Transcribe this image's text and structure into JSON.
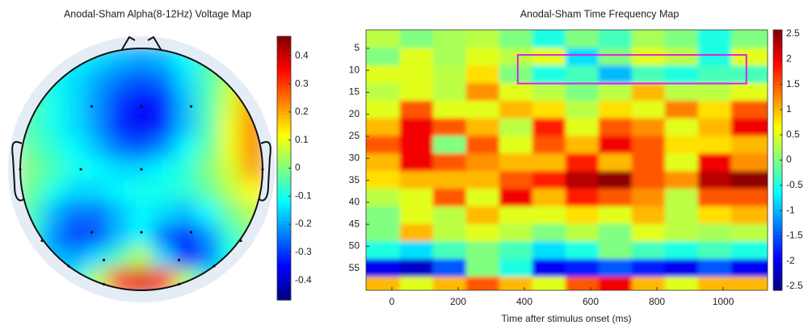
{
  "chart_data": [
    {
      "type": "topomap",
      "title": "Anodal-Sham Alpha(8-12Hz) Voltage Map",
      "x": [
        -0.91,
        -0.73,
        -0.55,
        -0.36,
        -0.18,
        0,
        0.18,
        0.36,
        0.55,
        0.73,
        0.91
      ],
      "y": [
        0.91,
        0.73,
        0.55,
        0.36,
        0.18,
        0,
        -0.18,
        -0.36,
        -0.55,
        -0.73,
        -0.91
      ],
      "values": [
        [
          -0.05,
          -0.1,
          -0.12,
          -0.15,
          -0.18,
          -0.2,
          -0.18,
          -0.12,
          -0.05,
          0.02,
          0.1
        ],
        [
          -0.05,
          -0.1,
          -0.15,
          -0.2,
          -0.25,
          -0.28,
          -0.25,
          -0.15,
          -0.05,
          0.05,
          0.15
        ],
        [
          -0.05,
          -0.1,
          -0.15,
          -0.22,
          -0.3,
          -0.35,
          -0.32,
          -0.18,
          -0.05,
          0.08,
          0.2
        ],
        [
          -0.05,
          -0.1,
          -0.15,
          -0.22,
          -0.32,
          -0.36,
          -0.32,
          -0.18,
          -0.05,
          0.1,
          0.22
        ],
        [
          -0.03,
          -0.08,
          -0.12,
          -0.18,
          -0.25,
          -0.28,
          -0.22,
          -0.12,
          -0.03,
          0.1,
          0.22
        ],
        [
          0,
          -0.05,
          -0.1,
          -0.12,
          -0.15,
          -0.15,
          -0.12,
          -0.08,
          0,
          0.08,
          0.2
        ],
        [
          -0.02,
          -0.1,
          -0.15,
          -0.15,
          -0.12,
          -0.1,
          -0.1,
          -0.08,
          -0.03,
          0.05,
          0.12
        ],
        [
          -0.05,
          -0.18,
          -0.25,
          -0.25,
          -0.18,
          -0.12,
          -0.15,
          -0.18,
          -0.12,
          -0.02,
          0.05
        ],
        [
          -0.08,
          -0.22,
          -0.3,
          -0.28,
          -0.18,
          -0.12,
          -0.25,
          -0.32,
          -0.22,
          -0.08,
          0
        ],
        [
          -0.1,
          -0.18,
          -0.2,
          -0.15,
          -0.05,
          0.05,
          -0.15,
          -0.35,
          -0.25,
          -0.1,
          -0.05
        ],
        [
          -0.1,
          -0.12,
          -0.1,
          0.05,
          0.3,
          0.38,
          0.3,
          0.05,
          -0.1,
          -0.1,
          -0.1
        ]
      ],
      "electrodes": {
        "x": [
          -0.41,
          0,
          0.41,
          -1,
          -0.5,
          0,
          1,
          -0.41,
          0,
          0.41,
          -0.82,
          0.82,
          -0.6,
          -0.31,
          0.31,
          0.6,
          -0.31,
          0.31
        ],
        "y": [
          0.52,
          0.52,
          0.52,
          0,
          0,
          0,
          0,
          -0.52,
          -0.52,
          -0.52,
          -0.59,
          -0.59,
          -0.8,
          -0.75,
          -0.75,
          -0.8,
          -0.95,
          -0.95
        ]
      },
      "clim": [
        -0.47,
        0.47
      ],
      "cticks": [
        0.4,
        0.3,
        0.2,
        0.1,
        0,
        -0.1,
        -0.2,
        -0.3,
        -0.4
      ],
      "colormap": "jet"
    },
    {
      "type": "heatmap",
      "title": "Anodal-Sham Time Frequency Map",
      "xlabel": "Time after stimulus onset (ms)",
      "x": [
        -25,
        75,
        175,
        275,
        375,
        475,
        575,
        675,
        775,
        875,
        975,
        1075
      ],
      "y": [
        3,
        7,
        11,
        15,
        19,
        23,
        27,
        31,
        35,
        39,
        43,
        47,
        51,
        55,
        59
      ],
      "values": [
        [
          0.3,
          0,
          0.2,
          0.3,
          0,
          -0.5,
          0,
          -0.3,
          0.2,
          0,
          -0.5,
          0
        ],
        [
          0,
          0.5,
          0.2,
          0.5,
          0.3,
          0.5,
          -0.8,
          0,
          0.5,
          0.3,
          -0.5,
          0.5
        ],
        [
          0.5,
          0.5,
          0.3,
          0.8,
          0,
          -0.5,
          -0.3,
          -1,
          -0.3,
          -0.5,
          -0.3,
          -0.3
        ],
        [
          0.3,
          0.5,
          0.3,
          1.2,
          0.5,
          0.3,
          0,
          0.3,
          1,
          0.3,
          0.3,
          0.5
        ],
        [
          0.5,
          1.5,
          0.5,
          0.5,
          1,
          0.8,
          0.3,
          0.8,
          0.5,
          1.3,
          0.8,
          1.5
        ],
        [
          1,
          2,
          1.5,
          1,
          0.3,
          1.8,
          0.5,
          1.5,
          1.2,
          0.5,
          1,
          2
        ],
        [
          1.5,
          2,
          0,
          1.5,
          0.5,
          1.5,
          1,
          2,
          1.5,
          0.8,
          0.8,
          1
        ],
        [
          1,
          2,
          1.5,
          1.2,
          1,
          1,
          1.8,
          1,
          1.5,
          0.5,
          2,
          1.2
        ],
        [
          0.8,
          1,
          1,
          1,
          1.5,
          1.8,
          2.3,
          2.5,
          1.5,
          1.2,
          2.3,
          2.5
        ],
        [
          0.3,
          0.5,
          1.5,
          0.5,
          2,
          1,
          1.8,
          1.5,
          1.2,
          0.3,
          1.5,
          1.5
        ],
        [
          0,
          0.5,
          0.3,
          1,
          0.5,
          0.5,
          0.8,
          0.5,
          1,
          0.3,
          0.8,
          1
        ],
        [
          0,
          1,
          0.3,
          0.5,
          0.3,
          0,
          0.3,
          0,
          0.5,
          0.3,
          0.2,
          0.3
        ],
        [
          -0.5,
          -0.8,
          -0.3,
          0,
          -0.3,
          -0.8,
          -0.5,
          0,
          -0.3,
          -0.5,
          -0.3,
          -0.5
        ],
        [
          -2,
          -2.2,
          -1.5,
          0,
          -0.5,
          -2,
          -1.8,
          -1.5,
          -1.8,
          -2,
          -1.5,
          -2
        ],
        [
          1,
          0.5,
          1,
          1.5,
          1,
          0.5,
          1.5,
          2,
          1,
          0.5,
          1,
          1
        ]
      ],
      "xlim": [
        -78,
        1134
      ],
      "ylim": [
        0.8,
        60
      ],
      "xticks": [
        0,
        200,
        400,
        600,
        800,
        1000
      ],
      "yticks": [
        5,
        10,
        15,
        20,
        25,
        30,
        35,
        40,
        45,
        50,
        55
      ],
      "clim": [
        -2.58,
        2.58
      ],
      "cticks": [
        2.5,
        2,
        1.5,
        1,
        0.5,
        0,
        -0.5,
        -1,
        -1.5,
        -2,
        -2.5
      ],
      "colormap": "jet",
      "highlight": {
        "x": [
          380,
          1070
        ],
        "y": [
          6.5,
          13
        ],
        "color": "#e020e0"
      }
    }
  ]
}
